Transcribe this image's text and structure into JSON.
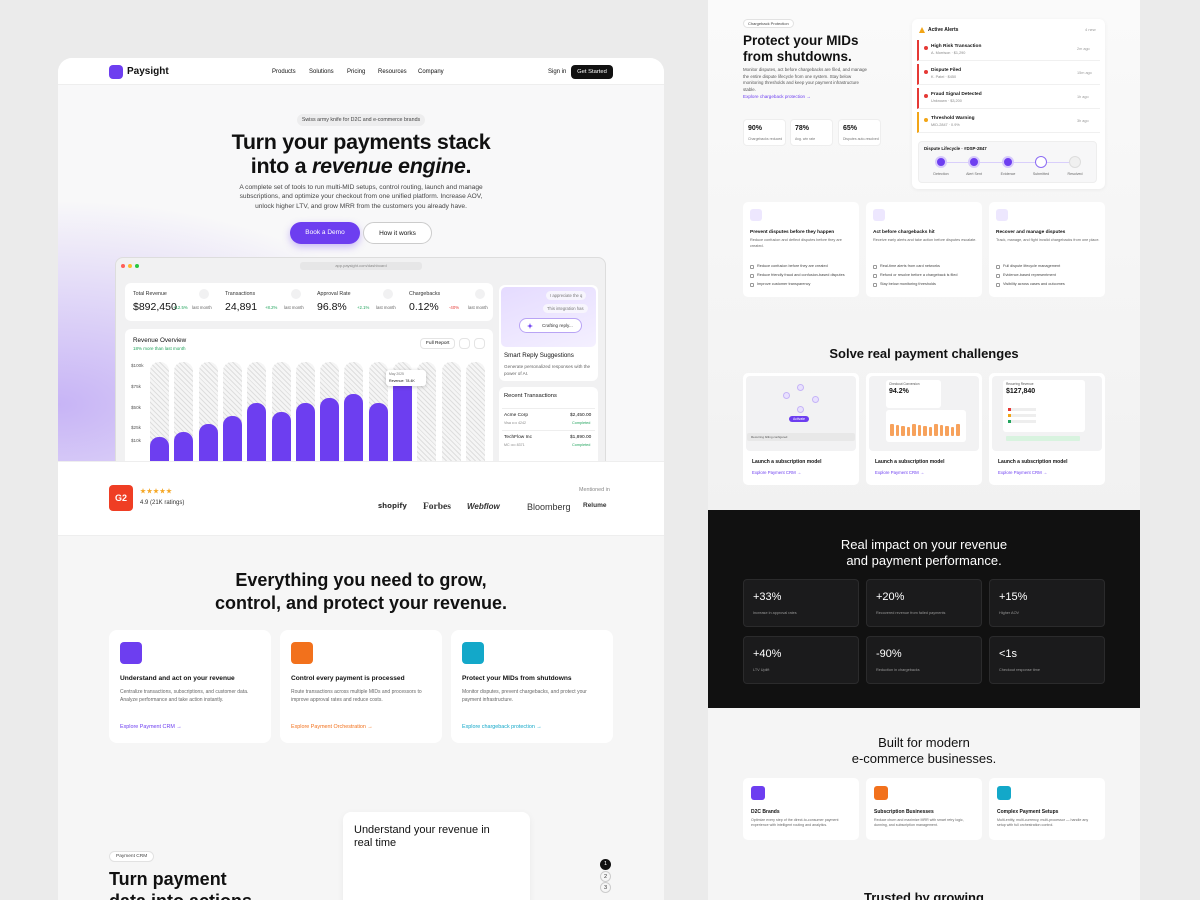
{
  "nav": {
    "brand": "Paysight",
    "links": [
      "Products",
      "Solutions",
      "Pricing",
      "Resources",
      "Company"
    ],
    "sign_in": "Sign in",
    "cta": "Get Started"
  },
  "hero": {
    "badge": "Swiss army knife for D2C and e-commerce brands",
    "title_line1": "Turn your payments stack",
    "title_line2_start": "into a ",
    "title_line2_em": "revenue engine",
    "title_line2_end": ".",
    "text": "A complete set of tools to run multi-MID setups, control routing, launch and manage subscriptions, and optimize your checkout from one unified platform. Increase AOV, unlock higher LTV, and grow MRR from the customers you already have.",
    "primary_cta": "Book a Demo",
    "secondary_cta": "How it works"
  },
  "dashboard": {
    "url": "app.paysight.com/dashboard",
    "stats": [
      {
        "label": "Total Revenue",
        "value": "$892,450",
        "change": "+12.5%",
        "period": "last month"
      },
      {
        "label": "Transactions",
        "value": "24,891",
        "change": "+8.2%",
        "period": "last month"
      },
      {
        "label": "Approval Rate",
        "value": "96.8%",
        "change": "+2.1%",
        "period": "last month"
      },
      {
        "label": "Chargebacks",
        "value": "0.12%",
        "change": "-40%",
        "period": "last month"
      }
    ],
    "revenue_chart": {
      "type": "bar",
      "title": "Revenue Overview",
      "subtitle": "18% more than last month",
      "button": "Full Report",
      "ylim": [
        0,
        100
      ],
      "yticks": [
        {
          "value": 100,
          "label": "$100k"
        },
        {
          "value": 75,
          "label": "$75k"
        },
        {
          "value": 50,
          "label": "$50k"
        },
        {
          "value": 25,
          "label": "$25k"
        },
        {
          "value": 10,
          "label": "$10k"
        }
      ],
      "values": [
        15,
        20,
        30,
        40,
        55,
        45,
        55,
        62,
        66,
        55,
        85
      ],
      "color": "#6d3ef0",
      "tooltip_date": "May 2025",
      "tooltip_value": "Revenue: 78.4K"
    },
    "smart_reply": {
      "bubbles": [
        "I appreciate the q",
        "This integration has",
        "Crafting reply..."
      ],
      "title": "Smart Reply Suggestions",
      "text": "Generate personalized responses with the power of AI."
    },
    "transactions": {
      "title": "Recent Transactions",
      "rows": [
        {
          "name": "Acme Corp",
          "meta": "Visa •••• 4242",
          "amount": "$2,450.00",
          "status": "Completed"
        },
        {
          "name": "TechFlow Inc",
          "meta": "MC •••• 8371",
          "amount": "$1,890.00",
          "status": "Completed"
        }
      ]
    }
  },
  "rating": {
    "badge": "G2",
    "score": "4.9 (21K ratings)",
    "mentioned": "Mentioned in",
    "logos": [
      "shopify",
      "Forbes",
      "Webflow",
      "Bloomberg",
      "Relume"
    ]
  },
  "features": {
    "title_line1": "Everything you need to grow,",
    "title_line2": "control, and protect your revenue.",
    "cards": [
      {
        "title": "Understand and act on your revenue",
        "text": "Centralize transactions, subscriptions, and customer data. Analyze performance and take action instantly.",
        "link": "Explore Payment CRM →"
      },
      {
        "title": "Control every payment is processed",
        "text": "Route transactions across multiple MIDs and processors to improve approval rates and reduce costs.",
        "link": "Explore Payment Orchestration →"
      },
      {
        "title": "Protect your MIDs from shutdowns",
        "text": "Monitor disputes, prevent chargebacks, and protect your payment infrastructure.",
        "link": "Explore chargeback protection →"
      }
    ]
  },
  "crm": {
    "badge": "Payment CRM",
    "title_line1": "Turn payment",
    "title_line2": "data into actions",
    "card_title": "Understand your revenue in real time",
    "steps": [
      "1",
      "2",
      "3"
    ]
  },
  "chargeback": {
    "badge": "Chargeback Protection",
    "title_line1": "Protect your MIDs",
    "title_line2": "from shutdowns.",
    "text": "Monitor disputes, act before chargebacks are filed, and manage the entire dispute lifecycle from one system. Stay below monitoring thresholds and keep your payment infrastructure stable.",
    "link": "Explore chargeback protection →",
    "stats": [
      {
        "value": "90%",
        "label": "Chargebacks reduced"
      },
      {
        "value": "78%",
        "label": "Avg. win rate"
      },
      {
        "value": "65%",
        "label": "Disputes auto-resolved"
      }
    ],
    "alerts": {
      "title": "Active Alerts",
      "count": "4 new",
      "items": [
        {
          "title": "High Risk Transaction",
          "meta": "A. Morrison · $1,290",
          "time": "2m ago"
        },
        {
          "title": "Dispute Filed",
          "meta": "K. Patel · $450",
          "time": "15m ago"
        },
        {
          "title": "Fraud Signal Detected",
          "meta": "Unknown · $3,200",
          "time": "1h ago"
        },
        {
          "title": "Threshold Warning",
          "meta": "MID-2847 · 0.9%",
          "time": "3h ago"
        }
      ]
    },
    "lifecycle": {
      "title": "Dispute Lifecycle · #DSP-2847",
      "steps": [
        "Detection",
        "Alert Sent",
        "Evidence",
        "Submitted",
        "Resolved"
      ]
    },
    "cards": [
      {
        "title": "Prevent disputes before they happen",
        "text": "Reduce confusion and deflect disputes before they are created.",
        "bullets": [
          "Reduce confusion before they are created",
          "Reduce friendly fraud and confusion-based disputes",
          "Improve customer transparency"
        ]
      },
      {
        "title": "Act before chargebacks hit",
        "text": "Receive early alerts and take action before disputes escalate.",
        "bullets": [
          "Real-time alerts from card networks",
          "Refund or resolve before a chargeback is filed",
          "Stay below monitoring thresholds"
        ]
      },
      {
        "title": "Recover and manage disputes",
        "text": "Track, manage, and fight invalid chargebacks from one place.",
        "bullets": [
          "Full dispute lifecycle management",
          "Evidence-based representment",
          "Visibility across cases and outcomes"
        ]
      }
    ]
  },
  "challenges": {
    "title": "Solve real payment challenges",
    "cards": [
      {
        "title": "Launch a subscription model",
        "link": "Explore Payment CRM →",
        "image_texts": [
          "Activate",
          "Recurring billing configured"
        ]
      },
      {
        "title": "Launch a subscription model",
        "link": "Explore Payment CRM →",
        "image_texts": [
          "Checkout Conversion",
          "94.2%"
        ]
      },
      {
        "title": "Launch a subscription model",
        "link": "Explore Payment CRM →",
        "image_texts": [
          "Recurring Revenue",
          "$127,840"
        ]
      }
    ]
  },
  "impact": {
    "title_line1": "Real impact on your revenue",
    "title_line2": "and payment performance.",
    "stats": [
      {
        "value": "+33%",
        "label": "Increase in approval rates"
      },
      {
        "value": "+20%",
        "label": "Recovered revenue from failed payments"
      },
      {
        "value": "+15%",
        "label": "Higher AOV"
      },
      {
        "value": "+40%",
        "label": "LTV Uplift"
      },
      {
        "value": "-90%",
        "label": "Reduction in chargebacks"
      },
      {
        "value": "<1s",
        "label": "Checkout response time"
      }
    ]
  },
  "built": {
    "title_line1": "Built for modern",
    "title_line2": "e-commerce businesses.",
    "cards": [
      {
        "title": "D2C Brands",
        "text": "Optimize every step of the direct-to-consumer payment experience with intelligent routing and analytics."
      },
      {
        "title": "Subscription Businesses",
        "text": "Reduce churn and maximize MRR with smart retry logic, dunning, and subscription management."
      },
      {
        "title": "Complex Payment Setups",
        "text": "Multi-entity, multi-currency, multi-processor — handle any setup with full orchestration control."
      }
    ]
  },
  "trusted": {
    "title": "Trusted by growing"
  }
}
